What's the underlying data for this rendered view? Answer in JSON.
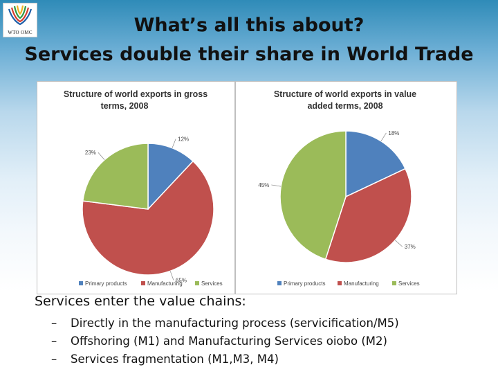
{
  "logo": {
    "text": "WTO OMC",
    "icon": "wto-logo-icon"
  },
  "title": {
    "line1": "What’s all this about?",
    "line2": "Services double their share in World Trade"
  },
  "colors": {
    "primary_products": "#4f81bd",
    "manufacturing": "#c0504d",
    "services": "#9bbb59"
  },
  "chart_data": [
    {
      "type": "pie",
      "title": "Structure of world exports in gross terms, 2008",
      "title_lines": [
        "Structure of world exports in gross",
        "terms, 2008"
      ],
      "categories": [
        "Primary products",
        "Manufacturing",
        "Services"
      ],
      "values": [
        12,
        65,
        23
      ],
      "data_labels": [
        "12%",
        "65%",
        "23%"
      ],
      "legend_position": "bottom"
    },
    {
      "type": "pie",
      "title": "Structure of world exports in value added terms, 2008",
      "title_lines": [
        "Structure of world exports in value",
        "added terms, 2008"
      ],
      "categories": [
        "Primary products",
        "Manufacturing",
        "Services"
      ],
      "values": [
        18,
        37,
        45
      ],
      "data_labels": [
        "18%",
        "37%",
        "45%"
      ],
      "legend_position": "bottom"
    }
  ],
  "body": {
    "intro": "Services enter the value chains:",
    "bullets": [
      "Directly in the manufacturing process (servicification/M5)",
      "Offshoring (M1) and Manufacturing Services oiobo (M2)",
      "Services fragmentation (M1,M3, M4)"
    ],
    "bullet_marker": "–"
  }
}
